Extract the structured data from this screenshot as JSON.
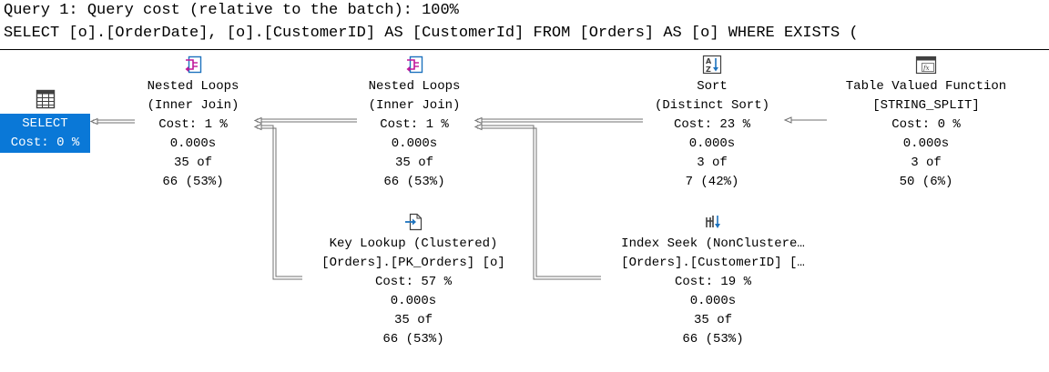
{
  "header": {
    "line1": "Query 1: Query cost (relative to the batch): 100%",
    "line2": "SELECT [o].[OrderDate], [o].[CustomerID] AS [CustomerId] FROM [Orders] AS [o] WHERE EXISTS ("
  },
  "colors": {
    "selection": "#0a78d7",
    "icon_blue": "#1e73be",
    "icon_magenta": "#c0179a",
    "connector": "#707070"
  },
  "plan": {
    "select": {
      "icon": "select-grid-icon",
      "label": "SELECT",
      "cost": "Cost: 0 %"
    },
    "nested_loops_1": {
      "icon": "nested-loops-icon",
      "name": "Nested Loops",
      "detail": "(Inner Join)",
      "cost": "Cost: 1 %",
      "time": "0.000s",
      "rows": "35 of",
      "estimate": "66 (53%)"
    },
    "nested_loops_2": {
      "icon": "nested-loops-icon",
      "name": "Nested Loops",
      "detail": "(Inner Join)",
      "cost": "Cost: 1 %",
      "time": "0.000s",
      "rows": "35 of",
      "estimate": "66 (53%)"
    },
    "sort": {
      "icon": "sort-icon",
      "name": "Sort",
      "detail": "(Distinct Sort)",
      "cost": "Cost: 23 %",
      "time": "0.000s",
      "rows": "3 of",
      "estimate": "7 (42%)"
    },
    "tvf": {
      "icon": "table-valued-function-icon",
      "name": "Table Valued Function",
      "detail": "[STRING_SPLIT]",
      "cost": "Cost: 0 %",
      "time": "0.000s",
      "rows": "3 of",
      "estimate": "50 (6%)"
    },
    "key_lookup": {
      "icon": "key-lookup-icon",
      "name": "Key Lookup (Clustered)",
      "detail": "[Orders].[PK_Orders] [o]",
      "cost": "Cost: 57 %",
      "time": "0.000s",
      "rows": "35 of",
      "estimate": "66 (53%)"
    },
    "index_seek": {
      "icon": "index-seek-icon",
      "name": "Index Seek (NonClustere…",
      "detail": "[Orders].[CustomerID] […",
      "cost": "Cost: 19 %",
      "time": "0.000s",
      "rows": "35 of",
      "estimate": "66 (53%)"
    }
  }
}
